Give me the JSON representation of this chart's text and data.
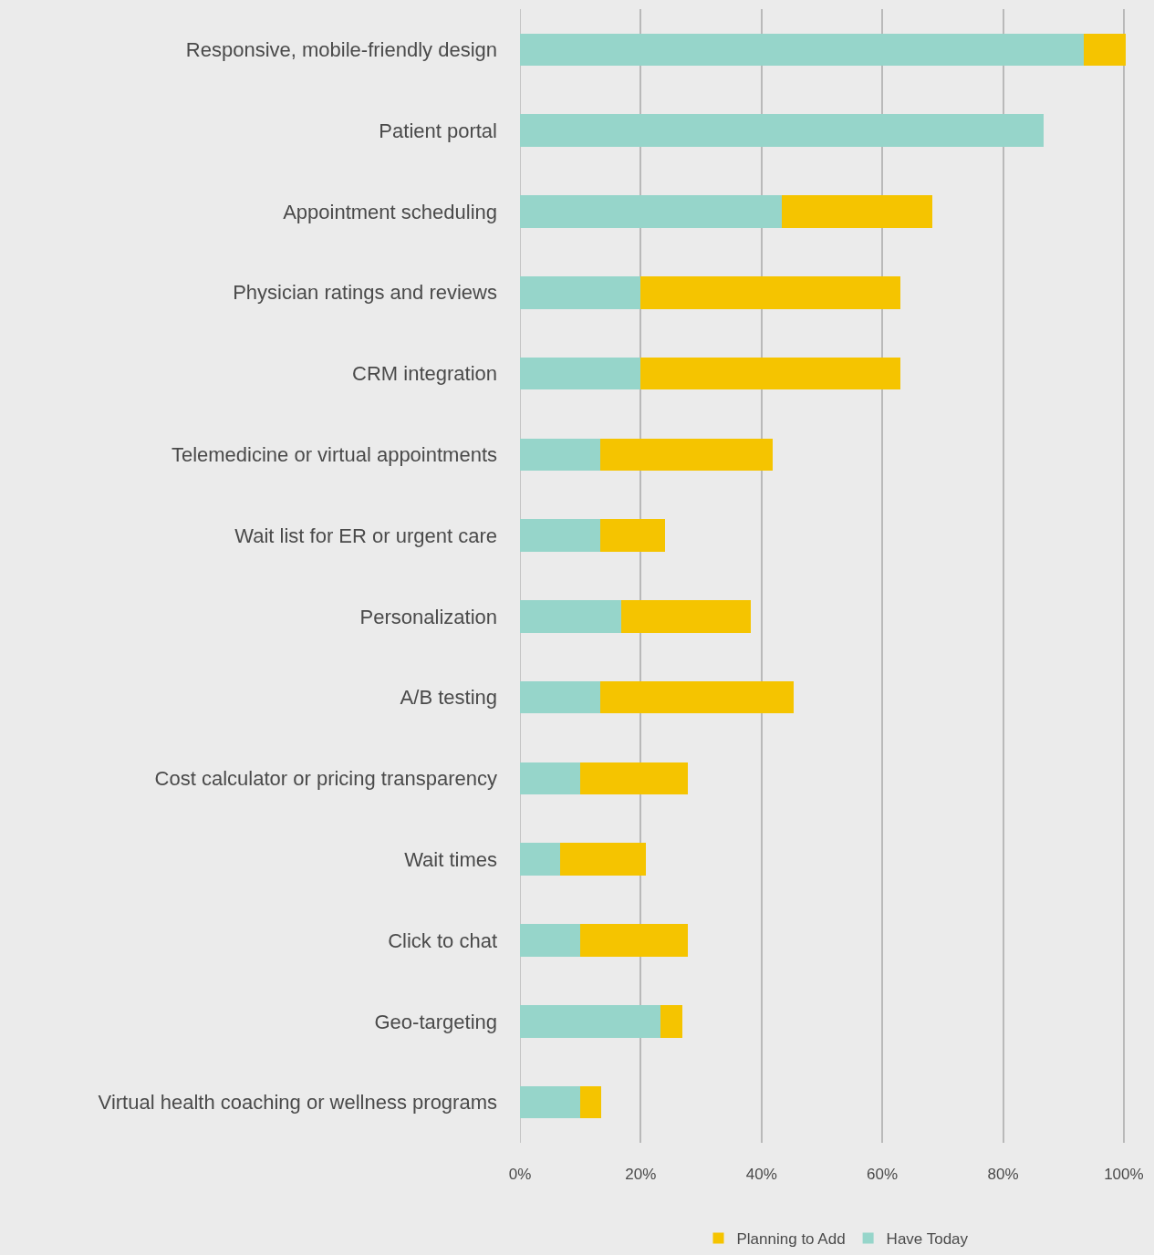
{
  "chart_data": {
    "type": "bar",
    "orientation": "horizontal",
    "stacked": true,
    "categories": [
      "Responsive, mobile-friendly design",
      "Patient portal",
      "Appointment scheduling",
      "Physician ratings and reviews",
      "CRM integration",
      "Telemedicine or virtual appointments",
      "Wait list for ER or urgent care",
      "Personalization",
      "A/B testing",
      "Cost calculator or pricing transparency",
      "Wait times",
      "Click to chat",
      "Geo-targeting",
      "Virtual health coaching or wellness programs"
    ],
    "series": [
      {
        "name": "Have Today",
        "color": "#96d5ca",
        "values": [
          93.3,
          86.7,
          43.3,
          20,
          20,
          13.3,
          13.3,
          16.7,
          13.3,
          10,
          6.7,
          10,
          23.3,
          10
        ]
      },
      {
        "name": "Planning to Add",
        "color": "#f5c400",
        "values": [
          7,
          0,
          25,
          43,
          43,
          28.5,
          10.7,
          21.5,
          32,
          17.8,
          14.2,
          17.8,
          3.6,
          3.5
        ]
      }
    ],
    "xlim": [
      0,
      105
    ],
    "xticks": [
      {
        "value": 0,
        "label": "0%"
      },
      {
        "value": 20,
        "label": "20%"
      },
      {
        "value": 40,
        "label": "40%"
      },
      {
        "value": 60,
        "label": "60%"
      },
      {
        "value": 80,
        "label": "80%"
      },
      {
        "value": 100,
        "label": "100%"
      }
    ],
    "grid": "x",
    "legend": "bottom"
  }
}
